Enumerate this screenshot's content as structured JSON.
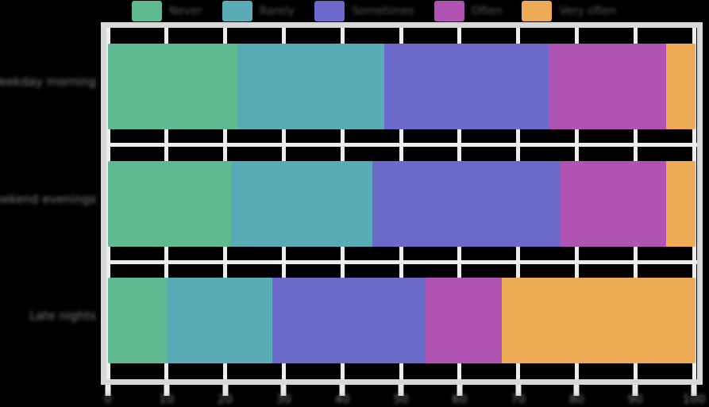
{
  "note": "Source screenshot is a static chart image on a transparent/black background. Every text element (legend labels, category labels, axis tick labels) is blurred and illegible in the source; the strings below are width-matched placeholders rendered with a blur to reproduce the look.",
  "style": {
    "background": "#000000",
    "gridline_color": "#ededed",
    "spine_color": "#d8d8d8",
    "tick_mark_color": "#e9e9e9",
    "axis_text_color": "#7e7e7e",
    "legend_text_color": "#585858"
  },
  "chart_data": {
    "type": "bar",
    "orientation": "horizontal",
    "stacked": true,
    "percent_total": 100,
    "title": "",
    "xlabel": "",
    "ylabel": "",
    "xlim": [
      0,
      100
    ],
    "x_ticks": [
      "0",
      "10",
      "20",
      "30",
      "40",
      "50",
      "60",
      "70",
      "80",
      "90",
      "100"
    ],
    "grid": true,
    "legend_position": "top",
    "text_legibility": "blurred/illegible in source",
    "categories": [
      "Weekday morning",
      "Weekend evenings",
      "Late nights"
    ],
    "series": [
      {
        "name": "Never",
        "color": "#60ba91",
        "values": [
          22,
          21,
          10
        ]
      },
      {
        "name": "Rarely",
        "color": "#59abb5",
        "values": [
          25,
          24,
          18
        ]
      },
      {
        "name": "Sometimes",
        "color": "#6b69c9",
        "values": [
          28,
          32,
          26
        ]
      },
      {
        "name": "Often",
        "color": "#b153b3",
        "values": [
          20,
          18,
          13
        ]
      },
      {
        "name": "Very often",
        "color": "#eeab55",
        "values": [
          5,
          5,
          33
        ]
      }
    ]
  }
}
